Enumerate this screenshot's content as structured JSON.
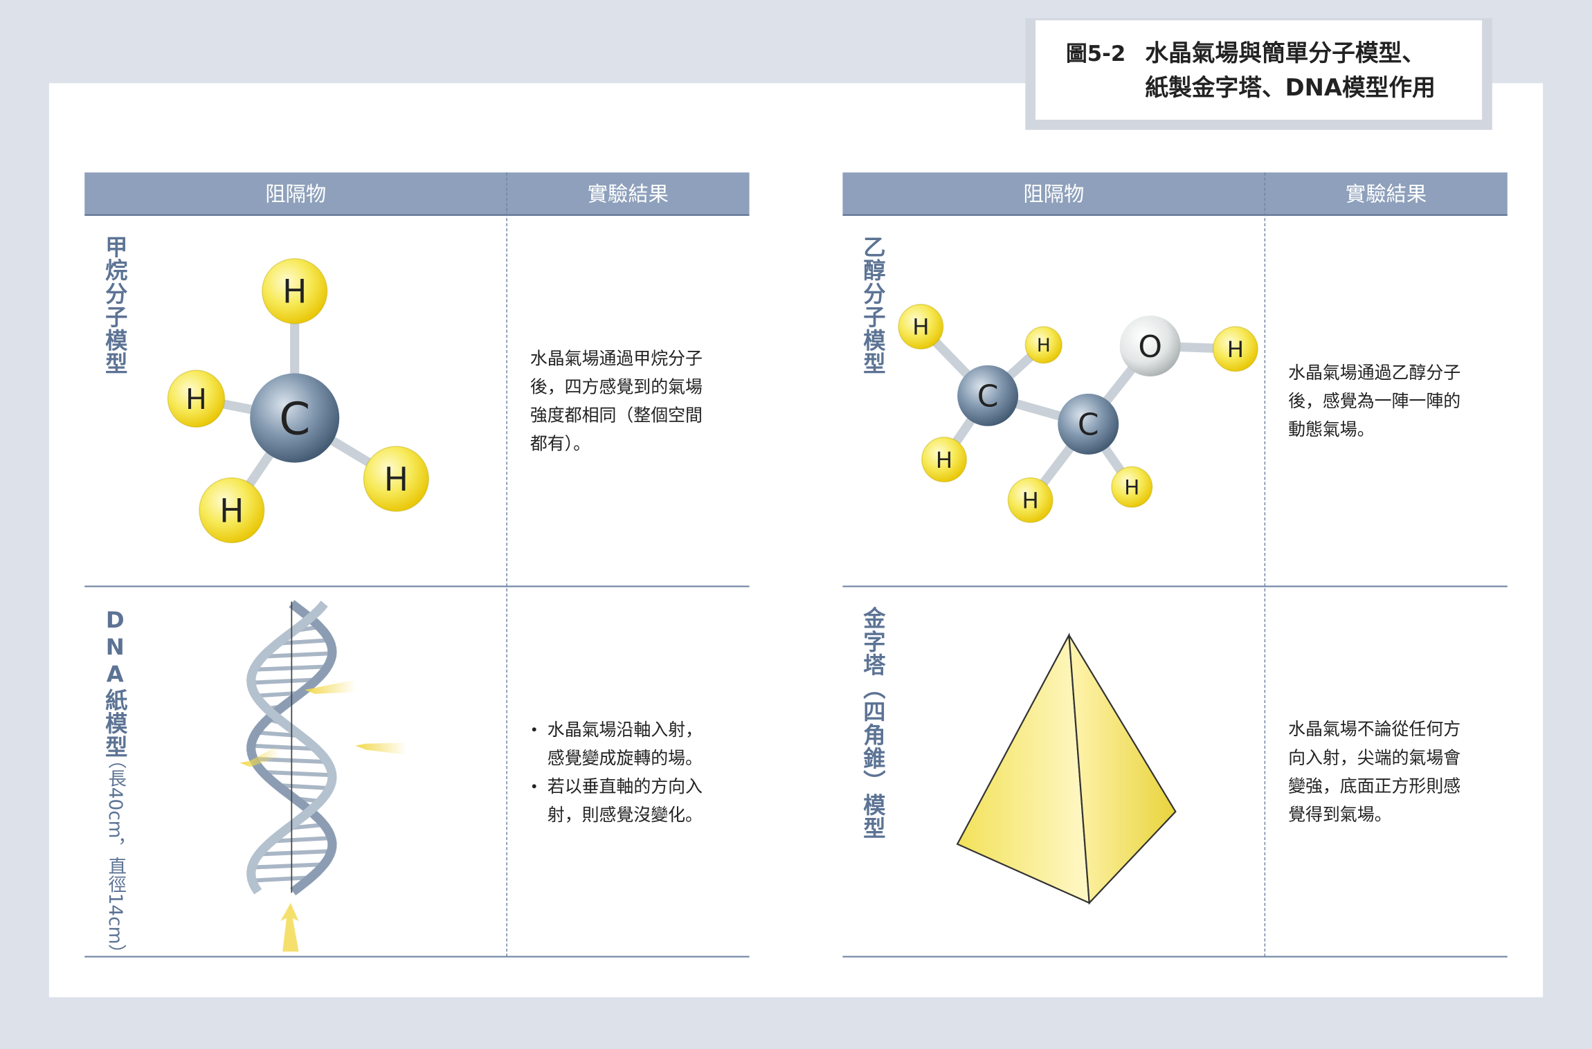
{
  "figure": {
    "label": "圖5-2",
    "title": [
      "水晶氣場與簡單分子模型、",
      "紙製金字塔、DNA模型作用"
    ]
  },
  "tables": [
    {
      "headers": [
        "阻隔物",
        "實驗結果"
      ],
      "rows": [
        {
          "label": "甲烷分子模型",
          "atoms": [
            "C",
            "H",
            "H",
            "H",
            "H"
          ],
          "result": [
            "水晶氣場通過甲烷分子",
            "後，四方感覺到的氣場",
            "強度都相同（整個空間",
            "都有）。"
          ]
        },
        {
          "label": "DNA紙模型",
          "note": "（長40cm，直徑14cm）",
          "bullets": [
            [
              "水晶氣場沿軸入射，",
              "感覺變成旋轉的場。"
            ],
            [
              "若以垂直軸的方向入",
              "射，則感覺沒變化。"
            ]
          ]
        }
      ]
    },
    {
      "headers": [
        "阻隔物",
        "實驗結果"
      ],
      "rows": [
        {
          "label": "乙醇分子模型",
          "atoms": [
            "C",
            "C",
            "O",
            "H",
            "H",
            "H",
            "H",
            "H",
            "H"
          ],
          "result": [
            "水晶氣場通過乙醇分子",
            "後，感覺為一陣一陣的",
            "動態氣場。"
          ]
        },
        {
          "label": "金字塔（四角錐）模型",
          "result": [
            "水晶氣場不論從任何方",
            "向入射，尖端的氣場會",
            "變強，底面正方形則感",
            "覺得到氣場。"
          ]
        }
      ]
    }
  ]
}
